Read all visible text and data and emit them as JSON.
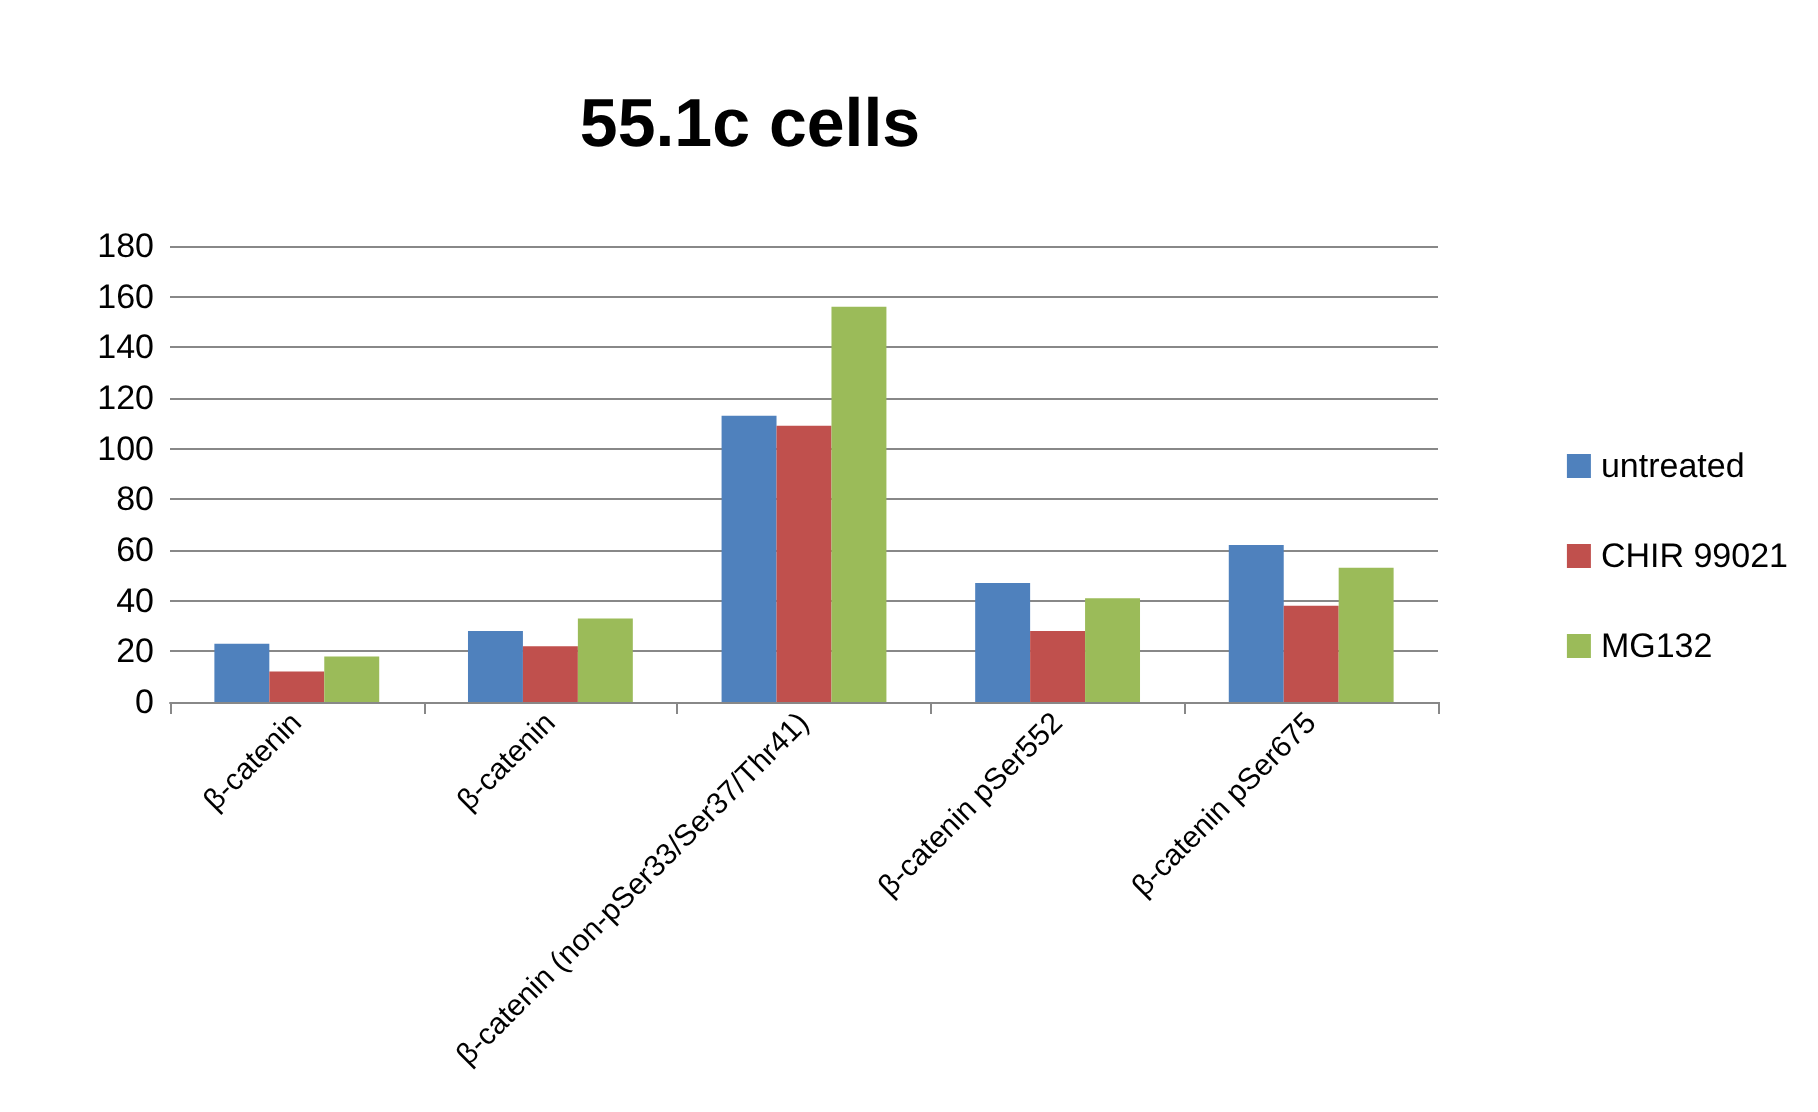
{
  "chart_data": {
    "type": "bar",
    "title": "55.1c cells",
    "categories": [
      "β-catenin",
      "β-catenin",
      "β-catenin (non-pSer33/Ser37/Thr41)",
      "β-catenin pSer552",
      "β-catenin pSer675"
    ],
    "series": [
      {
        "name": "untreated",
        "color": "#4f81bd",
        "values": [
          23,
          28,
          113,
          47,
          62
        ]
      },
      {
        "name": "CHIR 99021",
        "color": "#c0504d",
        "values": [
          12,
          22,
          109,
          28,
          38
        ]
      },
      {
        "name": "MG132",
        "color": "#9bbb59",
        "values": [
          18,
          33,
          156,
          41,
          53
        ]
      }
    ],
    "ylim": [
      0,
      180
    ],
    "yticks": [
      0,
      20,
      40,
      60,
      80,
      100,
      120,
      140,
      160,
      180
    ],
    "grid": "y",
    "legend": "right"
  }
}
